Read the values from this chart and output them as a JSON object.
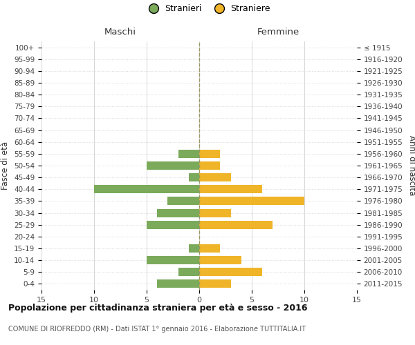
{
  "age_groups": [
    "100+",
    "95-99",
    "90-94",
    "85-89",
    "80-84",
    "75-79",
    "70-74",
    "65-69",
    "60-64",
    "55-59",
    "50-54",
    "45-49",
    "40-44",
    "35-39",
    "30-34",
    "25-29",
    "20-24",
    "15-19",
    "10-14",
    "5-9",
    "0-4"
  ],
  "birth_years": [
    "≤ 1915",
    "1916-1920",
    "1921-1925",
    "1926-1930",
    "1931-1935",
    "1936-1940",
    "1941-1945",
    "1946-1950",
    "1951-1955",
    "1956-1960",
    "1961-1965",
    "1966-1970",
    "1971-1975",
    "1976-1980",
    "1981-1985",
    "1986-1990",
    "1991-1995",
    "1996-2000",
    "2001-2005",
    "2006-2010",
    "2011-2015"
  ],
  "maschi": [
    0,
    0,
    0,
    0,
    0,
    0,
    0,
    0,
    0,
    2,
    5,
    1,
    10,
    3,
    4,
    5,
    0,
    1,
    5,
    2,
    4
  ],
  "femmine": [
    0,
    0,
    0,
    0,
    0,
    0,
    0,
    0,
    0,
    2,
    2,
    3,
    6,
    10,
    3,
    7,
    0,
    2,
    4,
    6,
    3
  ],
  "color_maschi": "#7aaa5a",
  "color_femmine": "#f0b429",
  "xlabel_left": "Maschi",
  "xlabel_right": "Femmine",
  "ylabel_left": "Fasce di età",
  "ylabel_right": "Anni di nascita",
  "xlim": 15,
  "legend_stranieri": "Stranieri",
  "legend_straniere": "Straniere",
  "title": "Popolazione per cittadinanza straniera per età e sesso - 2016",
  "subtitle": "COMUNE DI RIOFREDDO (RM) - Dati ISTAT 1° gennaio 2016 - Elaborazione TUTTITALIA.IT",
  "background_color": "#ffffff",
  "grid_color": "#d0d0d0",
  "bar_height": 0.7
}
